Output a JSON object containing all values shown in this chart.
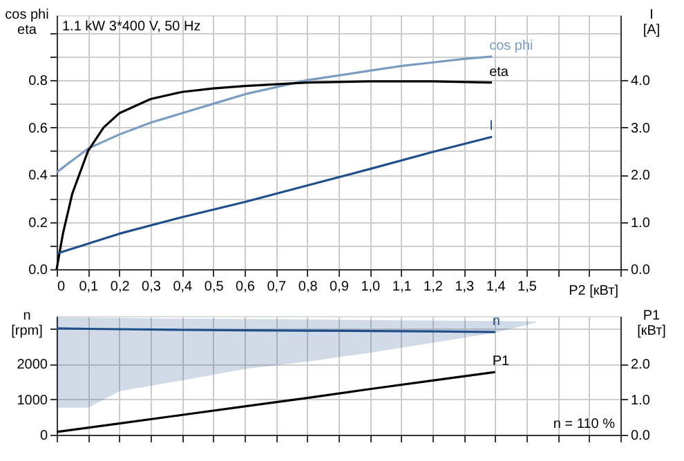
{
  "chart_data": [
    {
      "type": "line",
      "title": "1.1 kW  3*400 V, 50 Hz",
      "xlabel": "P2 [кВт]",
      "ylabel": "cos phi\neta",
      "y2label": "I\n[A]",
      "xlim": [
        0,
        1.8
      ],
      "xticks": [
        0,
        {
          "value": 0.1,
          "label": "0,1"
        },
        {
          "value": 0.2,
          "label": "0,2"
        },
        {
          "value": 0.3,
          "label": "0,3"
        },
        {
          "value": 0.4,
          "label": "0,4"
        },
        {
          "value": 0.5,
          "label": "0,5"
        },
        {
          "value": 0.6,
          "label": "0,6"
        },
        {
          "value": 0.7,
          "label": "0,7"
        },
        {
          "value": 0.8,
          "label": "0,8"
        },
        {
          "value": 0.9,
          "label": "0,9"
        },
        {
          "value": 1.0,
          "label": "1,0"
        },
        {
          "value": 1.1,
          "label": "1,1"
        },
        {
          "value": 1.2,
          "label": "1,2"
        },
        {
          "value": 1.3,
          "label": "1,3"
        },
        {
          "value": 1.4,
          "label": "1,4"
        },
        {
          "value": 1.5,
          "label": "1,5"
        },
        {
          "value": 1.6,
          "label": null
        },
        {
          "value": 1.7,
          "label": null
        },
        {
          "value": 1.8,
          "label": null
        }
      ],
      "ylim": [
        0,
        1.075
      ],
      "yticks": [
        {
          "value": 0,
          "label": "0.0"
        },
        {
          "value": 0.1,
          "label": null
        },
        0.2,
        {
          "value": 0.3,
          "label": null
        },
        0.4,
        {
          "value": 0.5,
          "label": null
        },
        0.6,
        {
          "value": 0.7,
          "label": null
        },
        0.8,
        {
          "value": 0.9,
          "label": null
        },
        {
          "value": 1.0,
          "label": null
        }
      ],
      "y2lim": [
        0,
        5.375
      ],
      "y2ticks": [
        {
          "value": 0,
          "label": "0.0"
        },
        {
          "value": 1,
          "label": "1.0"
        },
        {
          "value": 2,
          "label": "2.0"
        },
        {
          "value": 3,
          "label": "3.0"
        },
        {
          "value": 4,
          "label": "4.0"
        }
      ],
      "grid": true,
      "legend": false,
      "marker": "none",
      "line_style": "solid",
      "series": [
        {
          "name": "cos phi",
          "color": "#7a9cc0",
          "x": [
            0,
            0.05,
            0.1,
            0.2,
            0.3,
            0.4,
            0.5,
            0.6,
            0.7,
            0.8,
            0.9,
            1.0,
            1.1,
            1.2,
            1.3,
            1.39
          ],
          "values": [
            0.41,
            0.46,
            0.51,
            0.57,
            0.62,
            0.66,
            0.7,
            0.74,
            0.77,
            0.8,
            0.82,
            0.84,
            0.86,
            0.875,
            0.89,
            0.9
          ]
        },
        {
          "name": "eta",
          "color": "#000000",
          "x": [
            0,
            0.02,
            0.05,
            0.1,
            0.15,
            0.2,
            0.3,
            0.4,
            0.5,
            0.6,
            0.8,
            1.0,
            1.2,
            1.39
          ],
          "values": [
            0,
            0.15,
            0.32,
            0.5,
            0.6,
            0.66,
            0.72,
            0.75,
            0.765,
            0.775,
            0.79,
            0.795,
            0.795,
            0.79
          ]
        },
        {
          "name": "I",
          "color": "#1f4f8a",
          "axis": "y2",
          "x": [
            0,
            0.2,
            0.4,
            0.6,
            0.8,
            1.0,
            1.2,
            1.39
          ],
          "values": [
            0.33,
            0.75,
            1.1,
            1.42,
            1.77,
            2.12,
            2.48,
            2.8
          ]
        }
      ]
    },
    {
      "type": "line",
      "ylabel": "n\n[rpm]",
      "y2label": "P1\n[кВт]",
      "annotations": [
        "n = 110 %"
      ],
      "xlim": [
        0,
        1.8
      ],
      "xticks": [
        0,
        0.1,
        0.2,
        0.3,
        0.4,
        0.5,
        0.6,
        0.7,
        0.8,
        0.9,
        1.0,
        1.1,
        1.2,
        1.3,
        1.4,
        1.5,
        1.6,
        1.7,
        1.8
      ],
      "tick_labels": "y",
      "ylim": [
        0,
        3350
      ],
      "yticks": [
        0,
        1000,
        2000,
        {
          "value": 3000,
          "label": null
        }
      ],
      "y2lim": [
        0,
        3.35
      ],
      "y2ticks": [
        {
          "value": 0,
          "label": "0.0"
        },
        {
          "value": 1,
          "label": "1.0"
        },
        {
          "value": 2,
          "label": "2.0"
        }
      ],
      "grid": true,
      "legend": false,
      "marker": "none",
      "line_style": "solid",
      "series": [
        {
          "name": "n",
          "color": "#1f4f8a",
          "x": [
            0,
            0.1,
            0.2,
            0.4,
            0.6,
            0.8,
            1.0,
            1.2,
            1.4,
            1.53
          ],
          "values": [
            3000,
            2990,
            2980,
            2960,
            2950,
            2940,
            2930,
            2920,
            2900,
            null
          ],
          "lower": [
            780,
            780,
            1240,
            1550,
            1870,
            2080,
            2330,
            2610,
            2900,
            3180
          ],
          "upper": [
            3300,
            3290,
            3280,
            3260,
            3250,
            3240,
            3220,
            3210,
            3200,
            3180
          ]
        },
        {
          "name": "P1",
          "color": "#000000",
          "axis": "y2",
          "x": [
            0,
            0.2,
            0.4,
            0.6,
            0.8,
            1.0,
            1.2,
            1.4
          ],
          "values": [
            0.08,
            0.32,
            0.56,
            0.8,
            1.04,
            1.29,
            1.53,
            1.77
          ]
        }
      ]
    }
  ]
}
